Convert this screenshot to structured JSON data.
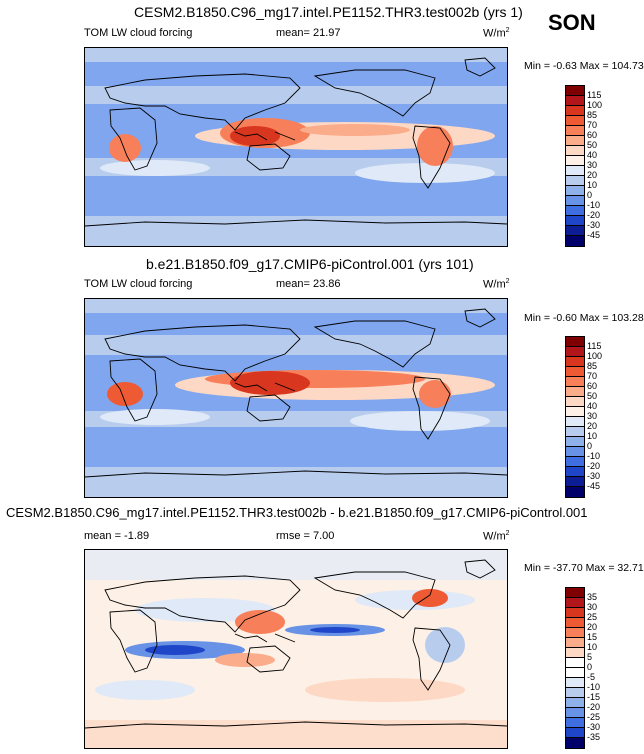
{
  "season": "SON",
  "panels": [
    {
      "title": "CESM2.B1850.C96_mg17.intel.PE1152.THR3.test002b (yrs 1)",
      "variable": "TOM LW cloud forcing",
      "stat1": "mean=  21.97",
      "stat2": "",
      "units": "W/m",
      "units_sup": "2",
      "minmax": "Min = -0.63 Max = 104.73",
      "levels": [
        "115",
        "100",
        "85",
        "70",
        "60",
        "50",
        "40",
        "30",
        "20",
        "10",
        "0",
        "-10",
        "-20",
        "-30",
        "-45"
      ],
      "colors": [
        "#7f0000",
        "#b2161b",
        "#d8361f",
        "#ee5a33",
        "#f7805a",
        "#fbac8b",
        "#fdd8c4",
        "#fdf0e6",
        "#dfe9f7",
        "#b8cdee",
        "#8eb1ea",
        "#6892e6",
        "#3f6ee0",
        "#1f46c8",
        "#0d1e94",
        "#00006b"
      ]
    },
    {
      "title": "b.e21.B1850.f09_g17.CMIP6-piControl.001 (yrs 101)",
      "variable": "TOM LW cloud forcing",
      "stat1": "mean=  23.86",
      "stat2": "",
      "units": "W/m",
      "units_sup": "2",
      "minmax": "Min = -0.60 Max = 103.28",
      "levels": [
        "115",
        "100",
        "85",
        "70",
        "60",
        "50",
        "40",
        "30",
        "20",
        "10",
        "0",
        "-10",
        "-20",
        "-30",
        "-45"
      ],
      "colors": [
        "#7f0000",
        "#b2161b",
        "#d8361f",
        "#ee5a33",
        "#f7805a",
        "#fbac8b",
        "#fdd8c4",
        "#fdf0e6",
        "#dfe9f7",
        "#b8cdee",
        "#8eb1ea",
        "#6892e6",
        "#3f6ee0",
        "#1f46c8",
        "#0d1e94",
        "#00006b"
      ]
    },
    {
      "title": "CESM2.B1850.C96_mg17.intel.PE1152.THR3.test002b - b.e21.B1850.f09_g17.CMIP6-piControl.001",
      "variable": "",
      "stat1": "mean =  -1.89",
      "stat2": "rmse =   7.00",
      "units": "W/m",
      "units_sup": "2",
      "minmax": "Min = -37.70 Max = 32.71",
      "levels": [
        "35",
        "30",
        "25",
        "20",
        "15",
        "10",
        "5",
        "0",
        "-5",
        "-10",
        "-15",
        "-20",
        "-25",
        "-30",
        "-35"
      ],
      "colors": [
        "#7f0000",
        "#b2161b",
        "#d8361f",
        "#ee5a33",
        "#f7805a",
        "#fbac8b",
        "#fdd8c4",
        "#ffffff",
        "#ffffff",
        "#dfe9f7",
        "#b8cdee",
        "#8eb1ea",
        "#6892e6",
        "#3f6ee0",
        "#1f46c8",
        "#00006b"
      ]
    }
  ]
}
